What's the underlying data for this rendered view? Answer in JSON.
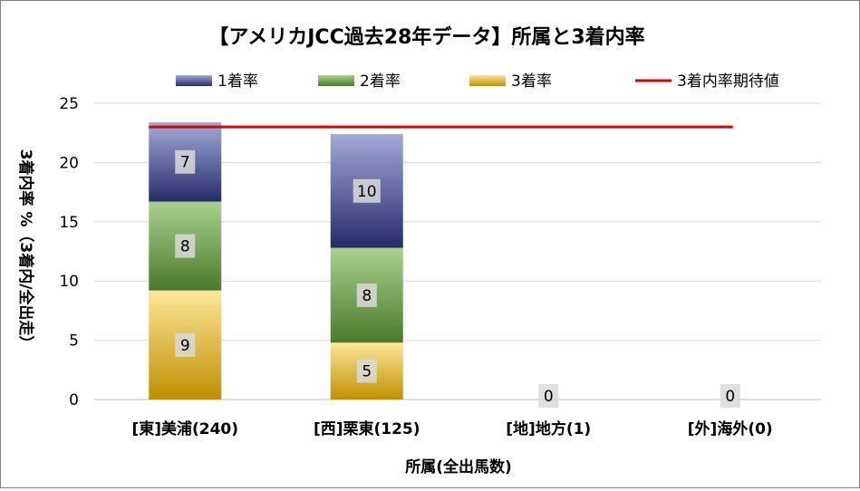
{
  "chart_data": {
    "type": "bar",
    "stacked": true,
    "title": "【アメリカJCC過去28年データ】所属と3着内率",
    "xlabel": "所属(全出馬数)",
    "ylabel": "3着内率 %（3着内/全出走）",
    "ylim": [
      0,
      25
    ],
    "yticks": [
      0,
      5,
      10,
      15,
      20,
      25
    ],
    "grid": true,
    "legend_position": "top",
    "categories": [
      "[東]美浦(240)",
      "[西]栗東(125)",
      "[地]地方(1)",
      "[外]海外(0)"
    ],
    "series": [
      {
        "name": "3着率",
        "values": [
          9.2,
          4.8,
          0,
          0
        ],
        "labels": [
          "9",
          "5",
          "0",
          "0"
        ],
        "color_light": "#ffe699",
        "color_dark": "#bf9000"
      },
      {
        "name": "2着率",
        "values": [
          7.5,
          8.0,
          0,
          0
        ],
        "labels": [
          "8",
          "8",
          "",
          ""
        ],
        "color_light": "#a9d18e",
        "color_dark": "#4b7a2b"
      },
      {
        "name": "1着率",
        "values": [
          6.7,
          9.6,
          0,
          0
        ],
        "labels": [
          "7",
          "10",
          "",
          ""
        ],
        "color_light": "#a4a9d8",
        "color_dark": "#262b6b"
      }
    ],
    "legend_order": [
      "1着率",
      "2着率",
      "3着率",
      "3着内率期待値"
    ],
    "expected_line": {
      "name": "3着内率期待値",
      "value": 23.0,
      "color": "#e00000"
    }
  }
}
